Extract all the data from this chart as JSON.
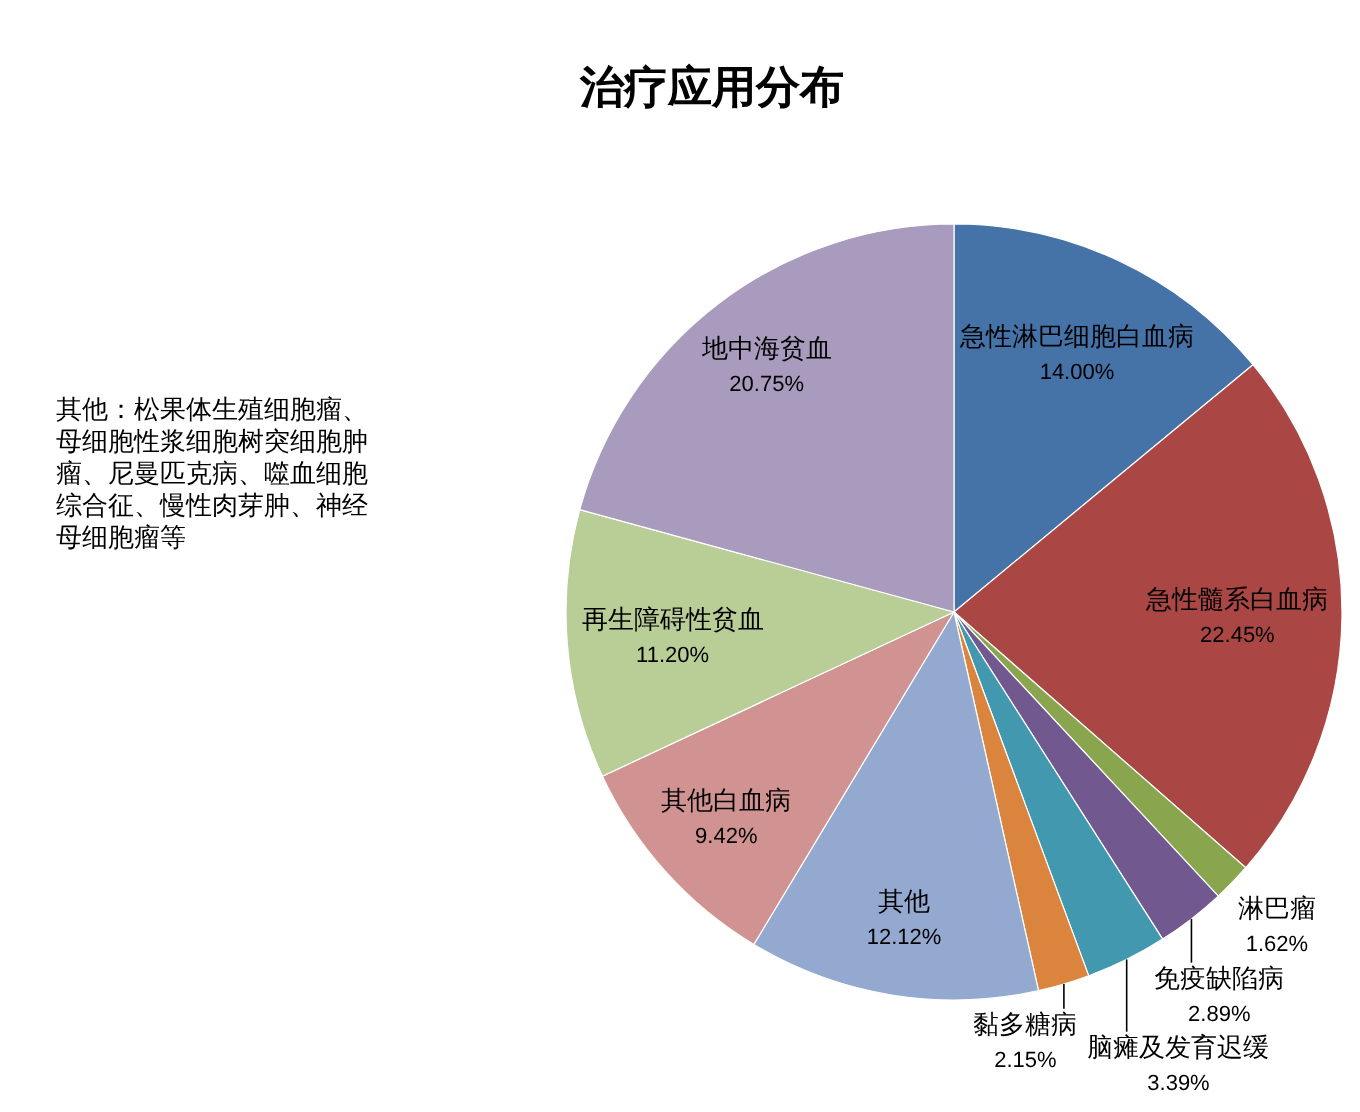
{
  "chart_data": {
    "type": "pie",
    "title": "治疗应用分布",
    "categories": [
      "急性淋巴细胞白血病",
      "急性髓系白血病",
      "淋巴瘤",
      "免疫缺陷病",
      "脑瘫及发育迟缓",
      "黏多糖病",
      "其他",
      "其他白血病",
      "再生障碍性贫血",
      "地中海贫血"
    ],
    "values": [
      14.0,
      22.45,
      1.62,
      2.89,
      3.39,
      2.15,
      12.12,
      9.42,
      11.2,
      20.75
    ],
    "colors": [
      "#4572a7",
      "#aa4643",
      "#89a54e",
      "#71588f",
      "#4198af",
      "#db843d",
      "#93a9cf",
      "#d19392",
      "#b9cd96",
      "#a99bbd"
    ],
    "value_labels": [
      "14.00%",
      "22.45%",
      "1.62%",
      "2.89%",
      "3.39%",
      "2.15%",
      "12.12%",
      "9.42%",
      "11.20%",
      "20.75%"
    ],
    "annotations": [
      "其他：松果体生殖细胞瘤、母细胞性浆细胞树突细胞肿瘤、尼曼匹克病、噬血细胞综合征、慢性肉芽肿、神经母细胞瘤等"
    ]
  }
}
